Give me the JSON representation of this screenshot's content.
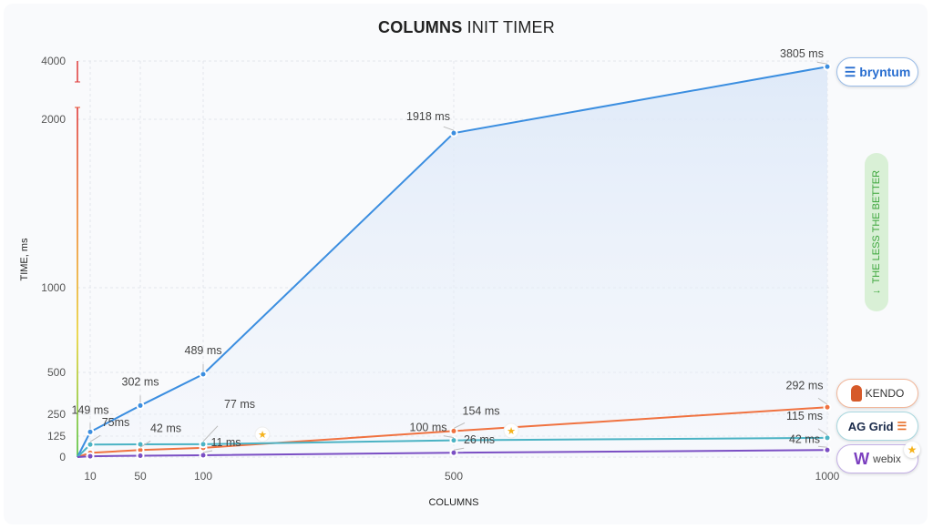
{
  "chart_data": {
    "type": "line",
    "title_bold": "COLUMNS",
    "title_rest": "INIT TIMER",
    "xlabel": "COLUMNS",
    "ylabel": "TIME, ms",
    "x": [
      10,
      50,
      100,
      500,
      1000
    ],
    "x_ticks": [
      "10",
      "50",
      "100",
      "500",
      "1000"
    ],
    "y_ticks": [
      "0",
      "125",
      "250",
      "500",
      "1000",
      "2000",
      "4000"
    ],
    "ylim": [
      0,
      4000
    ],
    "y_scale": "piecewise (nonlinear)",
    "grid": true,
    "legend_placement": "right",
    "annotation": "THE LESS THE BETTER",
    "series": [
      {
        "name": "bryntum",
        "color": "#3b8ee0",
        "values": [
          149,
          302,
          489,
          1918,
          3805
        ],
        "labels": [
          "149 ms",
          "302 ms",
          "489 ms",
          "1918 ms",
          "3805 ms"
        ]
      },
      {
        "name": "KENDO",
        "color": "#f07240",
        "values": [
          25,
          42,
          55,
          154,
          292
        ],
        "labels": [
          null,
          "42 ms",
          null,
          "154 ms",
          "292 ms"
        ]
      },
      {
        "name": "AG Grid",
        "color": "#4bb3c4",
        "values": [
          75,
          76,
          77,
          100,
          115
        ],
        "labels": [
          "75ms",
          null,
          "77 ms",
          "100 ms",
          "115 ms"
        ]
      },
      {
        "name": "webix",
        "color": "#7b4fc4",
        "values": [
          5,
          8,
          11,
          26,
          42
        ],
        "labels": [
          null,
          null,
          "11 ms",
          "26 ms",
          "42 ms"
        ]
      }
    ]
  }
}
